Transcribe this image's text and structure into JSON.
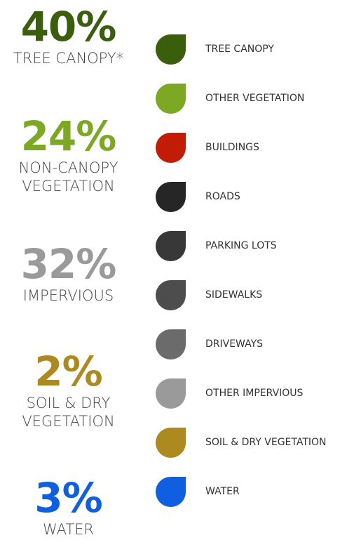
{
  "stats": [
    {
      "value": "40%",
      "label": "TREE CANOPY*",
      "color": "#3b5e0c"
    },
    {
      "value": "24%",
      "label": "NON-CANOPY VEGETATION",
      "color": "#7da823"
    },
    {
      "value": "32%",
      "label": "IMPERVIOUS",
      "color": "#9a9a9a"
    },
    {
      "value": "2%",
      "label": "SOIL & DRY VEGETATION",
      "color": "#ad8a1f"
    },
    {
      "value": "3%",
      "label": "WATER",
      "color": "#0f5fe0"
    }
  ],
  "legend": [
    {
      "label": "TREE CANOPY",
      "color": "#3b5e0c"
    },
    {
      "label": "OTHER VEGETATION",
      "color": "#7da823"
    },
    {
      "label": "BUILDINGS",
      "color": "#c21c06"
    },
    {
      "label": "ROADS",
      "color": "#262626"
    },
    {
      "label": "PARKING LOTS",
      "color": "#383838"
    },
    {
      "label": "SIDEWALKS",
      "color": "#4d4d4d"
    },
    {
      "label": "DRIVEWAYS",
      "color": "#6b6b6b"
    },
    {
      "label": "OTHER IMPERVIOUS",
      "color": "#9a9a9a"
    },
    {
      "label": "SOIL & DRY VEGETATION",
      "color": "#ad8a1f"
    },
    {
      "label": "WATER",
      "color": "#0f5fe0"
    }
  ]
}
